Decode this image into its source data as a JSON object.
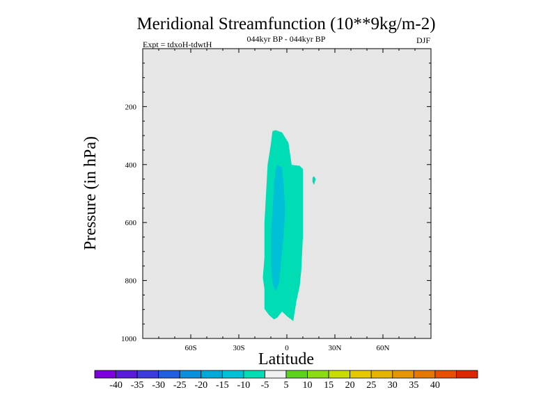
{
  "chart_data": {
    "type": "heatmap",
    "title": "Meridional Streamfunction (10**9kg/m-2)",
    "subtitle_left": "Expt = tdxoH-tdwtH",
    "subtitle_center": "044kyr BP - 044kyr BP",
    "subtitle_right": "DJF",
    "xlabel": "Latitude",
    "ylabel": "Pressure (in hPa)",
    "xlim": [
      -90,
      90
    ],
    "ylim": [
      1000,
      0
    ],
    "x_ticks": [
      {
        "value": -60,
        "label": "60S"
      },
      {
        "value": -30,
        "label": "30S"
      },
      {
        "value": 0,
        "label": "0"
      },
      {
        "value": 30,
        "label": "30N"
      },
      {
        "value": 60,
        "label": "60N"
      }
    ],
    "y_ticks": [
      {
        "value": 200,
        "label": "200"
      },
      {
        "value": 400,
        "label": "400"
      },
      {
        "value": 600,
        "label": "600"
      },
      {
        "value": 800,
        "label": "800"
      },
      {
        "value": 1000,
        "label": "1000"
      }
    ],
    "background_color": "#e6e6e6",
    "contours": [
      {
        "level": "-10 to -5",
        "color": "#00dcb4",
        "points": [
          [
            -7,
            281
          ],
          [
            -3,
            289
          ],
          [
            1,
            325
          ],
          [
            3,
            401
          ],
          [
            8,
            404
          ],
          [
            10,
            415
          ],
          [
            10,
            650
          ],
          [
            9,
            765
          ],
          [
            8,
            820
          ],
          [
            6,
            870
          ],
          [
            4,
            940
          ],
          [
            0,
            923
          ],
          [
            -3,
            907
          ],
          [
            -6,
            928
          ],
          [
            -8,
            934
          ],
          [
            -11,
            920
          ],
          [
            -14,
            898
          ],
          [
            -14,
            830
          ],
          [
            -15,
            790
          ],
          [
            -14,
            720
          ],
          [
            -14,
            600
          ],
          [
            -13,
            500
          ],
          [
            -12,
            400
          ],
          [
            -10,
            330
          ],
          [
            -9,
            285
          ]
        ]
      },
      {
        "level": "-15 to -10",
        "color": "#00c0d8",
        "points": [
          [
            -6,
            400
          ],
          [
            -3,
            410
          ],
          [
            -2,
            470
          ],
          [
            -1,
            560
          ],
          [
            -2,
            640
          ],
          [
            -3,
            700
          ],
          [
            -4,
            760
          ],
          [
            -5,
            810
          ],
          [
            -7,
            838
          ],
          [
            -9,
            810
          ],
          [
            -10,
            740
          ],
          [
            -10,
            640
          ],
          [
            -9,
            560
          ],
          [
            -8,
            470
          ],
          [
            -7,
            420
          ]
        ]
      },
      {
        "level": "-10 to -5",
        "color": "#00dcb4",
        "points": [
          [
            16,
            445
          ],
          [
            17,
            440
          ],
          [
            18,
            450
          ],
          [
            17,
            470
          ],
          [
            16,
            460
          ]
        ]
      }
    ],
    "colorbar": {
      "colors": [
        "#7d00dc",
        "#5a1adc",
        "#3c3cdc",
        "#1f5fe0",
        "#0a8fdc",
        "#00aad8",
        "#00c0d8",
        "#00dcb4",
        "#f0f0f0",
        "#5ad21e",
        "#8cdc14",
        "#c8dc00",
        "#e6c800",
        "#e6b400",
        "#e69600",
        "#e67800",
        "#e65000",
        "#dc2800"
      ],
      "labels": [
        "-40",
        "-35",
        "-30",
        "-25",
        "-20",
        "-15",
        "-10",
        "-5",
        "5",
        "10",
        "15",
        "20",
        "25",
        "30",
        "35",
        "40"
      ]
    }
  }
}
